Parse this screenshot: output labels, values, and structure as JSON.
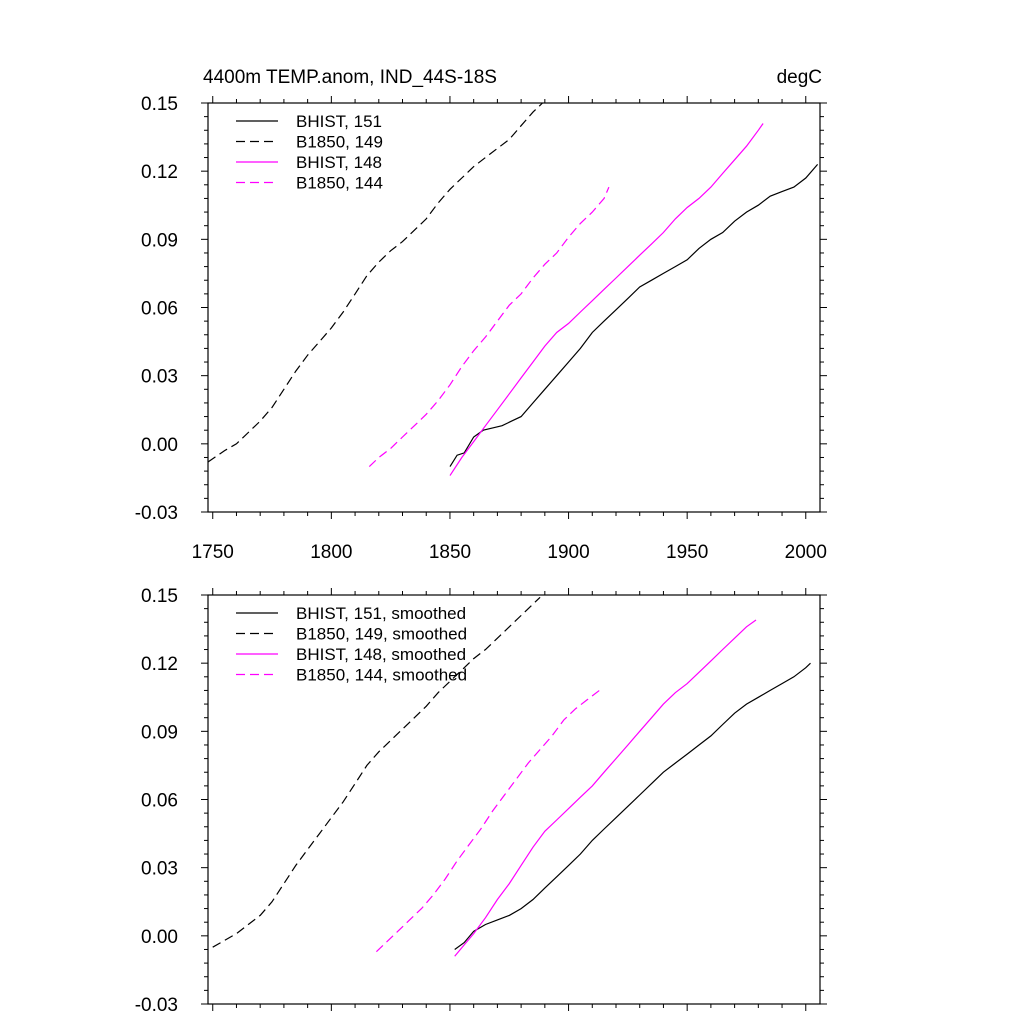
{
  "chart_data": [
    {
      "type": "line",
      "title_left": "4400m TEMP.anom, IND_44S-18S",
      "title_right": "degC",
      "xlim": [
        1748,
        2006
      ],
      "ylim": [
        -0.03,
        0.15
      ],
      "x_ticks": [
        1750,
        1800,
        1850,
        1900,
        1950,
        2000
      ],
      "x_tick_labels": [
        "1750",
        "1800",
        "1850",
        "1900",
        "1950",
        "2000"
      ],
      "y_ticks": [
        -0.03,
        0,
        0.03,
        0.06,
        0.09,
        0.12,
        0.15
      ],
      "y_tick_labels": [
        "-0.03",
        "0.00",
        "0.03",
        "0.06",
        "0.09",
        "0.12",
        "0.15"
      ],
      "grid": false,
      "legend_position": "top-left",
      "series": [
        {
          "name": "BHIST, 151",
          "color": "#000000",
          "dash": "solid",
          "x": [
            1850,
            1853,
            1856,
            1860,
            1864,
            1868,
            1872,
            1876,
            1880,
            1885,
            1890,
            1895,
            1900,
            1905,
            1910,
            1915,
            1920,
            1925,
            1930,
            1935,
            1940,
            1945,
            1950,
            1955,
            1960,
            1965,
            1970,
            1975,
            1980,
            1985,
            1990,
            1995,
            2000,
            2005
          ],
          "y": [
            -0.01,
            -0.005,
            -0.004,
            0.003,
            0.006,
            0.007,
            0.008,
            0.01,
            0.012,
            0.018,
            0.024,
            0.03,
            0.036,
            0.042,
            0.049,
            0.054,
            0.059,
            0.064,
            0.069,
            0.072,
            0.075,
            0.078,
            0.081,
            0.086,
            0.09,
            0.093,
            0.098,
            0.102,
            0.105,
            0.109,
            0.111,
            0.113,
            0.117,
            0.123
          ]
        },
        {
          "name": "B1850, 149",
          "color": "#000000",
          "dash": "dashed",
          "x": [
            1748,
            1755,
            1760,
            1765,
            1770,
            1775,
            1780,
            1785,
            1790,
            1795,
            1800,
            1805,
            1810,
            1815,
            1820,
            1825,
            1830,
            1835,
            1840,
            1845,
            1850,
            1855,
            1860,
            1865,
            1870,
            1875,
            1880,
            1885,
            1889
          ],
          "y": [
            -0.008,
            -0.003,
            0.0,
            0.005,
            0.01,
            0.016,
            0.024,
            0.032,
            0.039,
            0.045,
            0.051,
            0.058,
            0.066,
            0.074,
            0.08,
            0.085,
            0.089,
            0.094,
            0.099,
            0.106,
            0.112,
            0.117,
            0.122,
            0.126,
            0.13,
            0.134,
            0.14,
            0.146,
            0.15
          ]
        },
        {
          "name": "BHIST, 148",
          "color": "#FF00FF",
          "dash": "solid",
          "x": [
            1850,
            1855,
            1860,
            1865,
            1870,
            1875,
            1880,
            1885,
            1890,
            1895,
            1900,
            1905,
            1910,
            1915,
            1920,
            1925,
            1930,
            1935,
            1940,
            1945,
            1950,
            1955,
            1960,
            1965,
            1970,
            1975,
            1980,
            1982
          ],
          "y": [
            -0.014,
            -0.006,
            0.001,
            0.008,
            0.015,
            0.022,
            0.029,
            0.036,
            0.043,
            0.049,
            0.053,
            0.058,
            0.063,
            0.068,
            0.073,
            0.078,
            0.083,
            0.088,
            0.093,
            0.099,
            0.104,
            0.108,
            0.113,
            0.119,
            0.125,
            0.131,
            0.138,
            0.141
          ]
        },
        {
          "name": "B1850, 144",
          "color": "#FF00FF",
          "dash": "dashed",
          "x": [
            1816,
            1820,
            1825,
            1830,
            1835,
            1840,
            1845,
            1850,
            1855,
            1860,
            1865,
            1870,
            1875,
            1880,
            1885,
            1890,
            1895,
            1900,
            1905,
            1910,
            1915,
            1917
          ],
          "y": [
            -0.01,
            -0.006,
            -0.002,
            0.003,
            0.008,
            0.013,
            0.019,
            0.026,
            0.034,
            0.041,
            0.047,
            0.054,
            0.061,
            0.066,
            0.073,
            0.079,
            0.084,
            0.091,
            0.097,
            0.102,
            0.108,
            0.113
          ]
        }
      ]
    },
    {
      "type": "line",
      "xlim": [
        1748,
        2006
      ],
      "ylim": [
        -0.03,
        0.15
      ],
      "x_ticks": [
        1750,
        1800,
        1850,
        1900,
        1950,
        2000
      ],
      "y_ticks": [
        -0.03,
        0,
        0.03,
        0.06,
        0.09,
        0.12,
        0.15
      ],
      "y_tick_labels": [
        "-0.03",
        "0.00",
        "0.03",
        "0.06",
        "0.09",
        "0.12",
        "0.15"
      ],
      "grid": false,
      "legend_position": "top-left",
      "series": [
        {
          "name": "BHIST, 151, smoothed",
          "color": "#000000",
          "dash": "solid",
          "x": [
            1852,
            1856,
            1860,
            1865,
            1870,
            1875,
            1880,
            1885,
            1890,
            1895,
            1900,
            1905,
            1910,
            1915,
            1920,
            1925,
            1930,
            1935,
            1940,
            1945,
            1950,
            1955,
            1960,
            1965,
            1970,
            1975,
            1980,
            1985,
            1990,
            1995,
            2000,
            2002
          ],
          "y": [
            -0.006,
            -0.003,
            0.002,
            0.005,
            0.007,
            0.009,
            0.012,
            0.016,
            0.021,
            0.026,
            0.031,
            0.036,
            0.042,
            0.047,
            0.052,
            0.057,
            0.062,
            0.067,
            0.072,
            0.076,
            0.08,
            0.084,
            0.088,
            0.093,
            0.098,
            0.102,
            0.105,
            0.108,
            0.111,
            0.114,
            0.118,
            0.12
          ]
        },
        {
          "name": "B1850, 149, smoothed",
          "color": "#000000",
          "dash": "dashed",
          "x": [
            1750,
            1755,
            1760,
            1765,
            1770,
            1775,
            1780,
            1785,
            1790,
            1795,
            1800,
            1805,
            1810,
            1815,
            1820,
            1825,
            1830,
            1835,
            1840,
            1845,
            1850,
            1855,
            1860,
            1865,
            1870,
            1875,
            1880,
            1885,
            1888
          ],
          "y": [
            -0.005,
            -0.002,
            0.001,
            0.005,
            0.009,
            0.015,
            0.023,
            0.031,
            0.038,
            0.045,
            0.052,
            0.059,
            0.067,
            0.075,
            0.081,
            0.086,
            0.091,
            0.096,
            0.101,
            0.107,
            0.112,
            0.117,
            0.122,
            0.126,
            0.131,
            0.136,
            0.141,
            0.146,
            0.149
          ]
        },
        {
          "name": "BHIST, 148, smoothed",
          "color": "#FF00FF",
          "dash": "solid",
          "x": [
            1852,
            1856,
            1860,
            1865,
            1870,
            1875,
            1880,
            1885,
            1890,
            1895,
            1900,
            1905,
            1910,
            1915,
            1920,
            1925,
            1930,
            1935,
            1940,
            1945,
            1950,
            1955,
            1960,
            1965,
            1970,
            1975,
            1979
          ],
          "y": [
            -0.009,
            -0.004,
            0.001,
            0.008,
            0.016,
            0.023,
            0.031,
            0.039,
            0.046,
            0.051,
            0.056,
            0.061,
            0.066,
            0.072,
            0.078,
            0.084,
            0.09,
            0.096,
            0.102,
            0.107,
            0.111,
            0.116,
            0.121,
            0.126,
            0.131,
            0.136,
            0.139
          ]
        },
        {
          "name": "B1850, 144, smoothed",
          "color": "#FF00FF",
          "dash": "dashed",
          "x": [
            1819,
            1823,
            1828,
            1833,
            1838,
            1843,
            1848,
            1853,
            1858,
            1863,
            1868,
            1873,
            1878,
            1883,
            1888,
            1893,
            1898,
            1903,
            1908,
            1913
          ],
          "y": [
            -0.007,
            -0.003,
            0.002,
            0.007,
            0.012,
            0.018,
            0.025,
            0.033,
            0.04,
            0.047,
            0.055,
            0.062,
            0.069,
            0.076,
            0.082,
            0.088,
            0.095,
            0.1,
            0.104,
            0.108
          ]
        }
      ]
    }
  ]
}
